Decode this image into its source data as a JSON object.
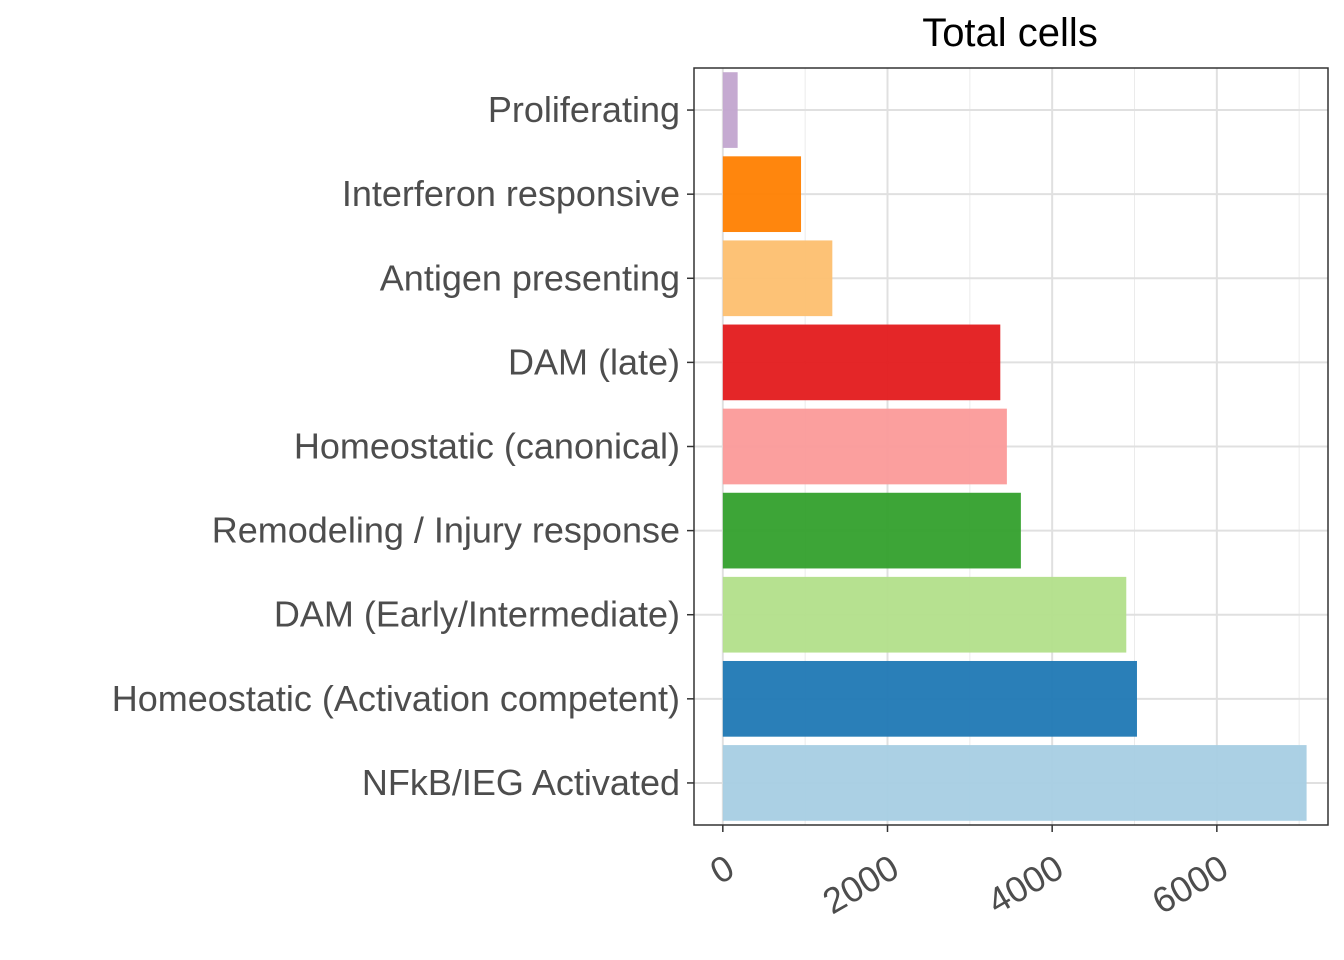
{
  "chart_data": {
    "type": "bar",
    "orientation": "horizontal",
    "title": "Total cells",
    "xlabel": "",
    "ylabel": "",
    "xlim": [
      -350,
      7350
    ],
    "x_ticks": [
      0,
      2000,
      4000,
      6000
    ],
    "x_tick_labels": [
      "0",
      "2000",
      "4000",
      "6000"
    ],
    "x_tick_rotation_deg": -30,
    "grid": true,
    "legend": "none",
    "categories": [
      "Proliferating",
      "Interferon responsive",
      "Antigen presenting",
      "DAM (late)",
      "Homeostatic (canonical)",
      "Remodeling / Injury response",
      "DAM (Early/Intermediate)",
      "Homeostatic (Activation competent)",
      "NFkB/IEG Activated"
    ],
    "values": [
      180,
      950,
      1330,
      3370,
      3450,
      3620,
      4900,
      5030,
      7090
    ],
    "colors": [
      "#c2a5cf",
      "#ff7f00",
      "#fdbf6f",
      "#e31a1c",
      "#fb9a99",
      "#33a02c",
      "#b2df8a",
      "#1f78b4",
      "#a6cee3"
    ]
  }
}
